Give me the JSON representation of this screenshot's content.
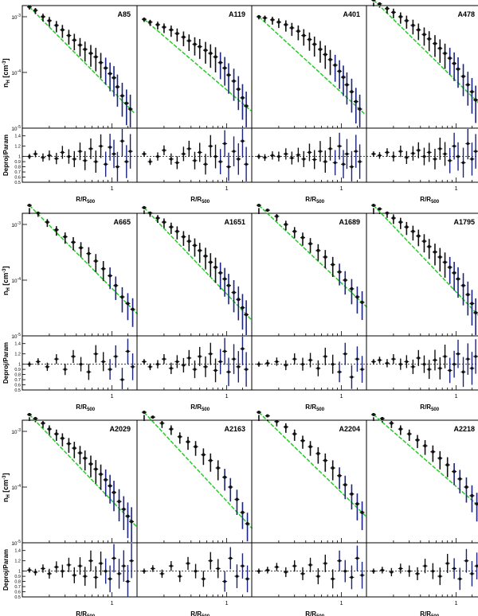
{
  "figure": {
    "ylabel_top": "n_H [cm^-3]",
    "ylabel_bottom": "Deproj/Param",
    "xlabel": "R/R_500"
  },
  "colors": {
    "data": "#111111",
    "error_bar": "#1a237e",
    "model": "#22cc22",
    "frame": "#000000",
    "reference_line": "#000000"
  },
  "chart_data": {
    "type": "scatter",
    "x_scale": "log",
    "y_scale_top": "log",
    "y_top_ticks": [
      "10^-3",
      "10^-4",
      "10^-5"
    ],
    "y_bottom_ticks": [
      "0.5",
      "0.6",
      "0.7",
      "0.8",
      "0.9",
      "1",
      "1.2",
      "1.4"
    ],
    "x_tick_label": "1",
    "reference_ratio": 1.0,
    "panels": [
      {
        "name": "A85",
        "x": [
          0.12,
          0.14,
          0.17,
          0.2,
          0.24,
          0.28,
          0.33,
          0.38,
          0.44,
          0.5,
          0.58,
          0.66,
          0.75,
          0.85,
          0.95,
          1.05,
          1.15,
          1.3,
          1.45,
          1.6
        ],
        "density_e4": [
          15,
          13,
          10,
          8.5,
          7,
          5.8,
          4.6,
          3.8,
          3.1,
          2.6,
          2.2,
          1.9,
          1.5,
          1.2,
          0.95,
          0.8,
          0.55,
          0.38,
          0.28,
          0.22
        ],
        "ratio": [
          1.0,
          1.05,
          0.98,
          1.02,
          0.96,
          1.08,
          1.0,
          0.95,
          1.1,
          0.92,
          1.15,
          0.9,
          1.2,
          0.85,
          1.18,
          1.05,
          0.8,
          1.3,
          0.9,
          1.1
        ]
      },
      {
        "name": "A119",
        "x": [
          0.12,
          0.14,
          0.17,
          0.2,
          0.24,
          0.28,
          0.33,
          0.38,
          0.44,
          0.5,
          0.58,
          0.66,
          0.75,
          0.85,
          0.95,
          1.05,
          1.2,
          1.35,
          1.5,
          1.65
        ],
        "density_e4": [
          9,
          8,
          7.2,
          6.5,
          5.8,
          5,
          4.3,
          3.7,
          3.2,
          2.9,
          2.5,
          2.2,
          1.9,
          1.5,
          1.2,
          0.9,
          0.7,
          0.5,
          0.35,
          0.25
        ],
        "ratio": [
          1.05,
          0.9,
          1.0,
          1.12,
          0.95,
          0.88,
          1.05,
          1.15,
          0.92,
          1.08,
          0.85,
          1.2,
          1.0,
          0.9,
          1.25,
          0.8,
          1.1,
          0.95,
          1.3,
          0.85
        ]
      },
      {
        "name": "A401",
        "x": [
          0.12,
          0.14,
          0.17,
          0.2,
          0.24,
          0.28,
          0.33,
          0.38,
          0.44,
          0.5,
          0.58,
          0.66,
          0.75,
          0.85,
          0.95,
          1.05,
          1.15,
          1.3,
          1.45,
          1.6
        ],
        "density_e4": [
          10,
          9.5,
          8.8,
          8,
          7.2,
          6.3,
          5.5,
          4.6,
          3.9,
          3.2,
          2.6,
          2.1,
          1.7,
          1.35,
          1.05,
          0.82,
          0.6,
          0.45,
          0.3,
          0.22
        ],
        "ratio": [
          1.0,
          0.98,
          1.02,
          1.0,
          1.05,
          0.97,
          1.03,
          0.95,
          1.08,
          0.94,
          1.1,
          0.9,
          1.15,
          0.88,
          1.2,
          0.85,
          1.05,
          0.8,
          1.1,
          0.9
        ]
      },
      {
        "name": "A478",
        "x": [
          0.12,
          0.14,
          0.17,
          0.2,
          0.24,
          0.28,
          0.33,
          0.38,
          0.44,
          0.5,
          0.58,
          0.66,
          0.75,
          0.85,
          0.95,
          1.05,
          1.2,
          1.35,
          1.5,
          1.65
        ],
        "density_e4": [
          20,
          17,
          14,
          12,
          10,
          8.5,
          7,
          5.8,
          4.8,
          4,
          3.3,
          2.7,
          2.2,
          1.8,
          1.45,
          1.15,
          0.85,
          0.6,
          0.45,
          0.32
        ],
        "ratio": [
          1.05,
          1.02,
          1.08,
          1.0,
          1.1,
          0.98,
          1.06,
          1.12,
          1.0,
          1.08,
          0.95,
          1.15,
          1.05,
          0.92,
          1.2,
          1.0,
          0.88,
          1.25,
          0.95,
          1.1
        ]
      },
      {
        "name": "A665",
        "x": [
          0.12,
          0.15,
          0.19,
          0.24,
          0.3,
          0.37,
          0.45,
          0.55,
          0.66,
          0.8,
          0.95,
          1.1,
          1.3,
          1.5,
          1.7
        ],
        "density_e4": [
          22,
          16,
          11,
          8,
          6,
          4.8,
          3.8,
          3,
          2.2,
          1.6,
          1.2,
          0.8,
          0.5,
          0.38,
          0.3
        ],
        "ratio": [
          1.0,
          1.05,
          0.95,
          1.1,
          0.9,
          1.15,
          1.0,
          0.85,
          1.2,
          1.05,
          0.9,
          1.15,
          0.7,
          1.25,
          0.95
        ]
      },
      {
        "name": "A1651",
        "x": [
          0.12,
          0.14,
          0.17,
          0.2,
          0.24,
          0.28,
          0.33,
          0.38,
          0.44,
          0.5,
          0.58,
          0.66,
          0.75,
          0.85,
          0.95,
          1.05,
          1.2,
          1.35,
          1.5,
          1.65
        ],
        "density_e4": [
          20,
          16,
          13,
          11,
          9,
          7.5,
          6,
          5,
          4.2,
          3.4,
          2.7,
          2.1,
          1.7,
          1.35,
          1.05,
          0.8,
          0.6,
          0.45,
          0.32,
          0.24
        ],
        "ratio": [
          1.05,
          0.95,
          1.0,
          1.1,
          0.92,
          1.05,
          0.98,
          1.12,
          0.9,
          1.15,
          0.95,
          1.2,
          0.88,
          1.05,
          1.25,
          0.85,
          1.1,
          0.95,
          1.3,
          0.9
        ]
      },
      {
        "name": "A1689",
        "x": [
          0.12,
          0.15,
          0.19,
          0.24,
          0.3,
          0.37,
          0.45,
          0.55,
          0.66,
          0.8,
          0.95,
          1.1,
          1.3,
          1.5,
          1.7
        ],
        "density_e4": [
          22,
          18,
          14,
          10,
          7.5,
          5.8,
          4.5,
          3.4,
          2.6,
          1.9,
          1.4,
          1.0,
          0.7,
          0.5,
          0.4
        ],
        "ratio": [
          1.0,
          1.02,
          1.05,
          0.98,
          1.1,
          1.0,
          1.08,
          0.92,
          1.15,
          1.0,
          0.85,
          1.2,
          0.75,
          1.1,
          0.9
        ]
      },
      {
        "name": "A1795",
        "x": [
          0.12,
          0.14,
          0.17,
          0.2,
          0.24,
          0.28,
          0.33,
          0.38,
          0.44,
          0.5,
          0.58,
          0.66,
          0.75,
          0.85,
          0.95,
          1.05,
          1.2,
          1.35,
          1.5,
          1.65
        ],
        "density_e4": [
          22,
          19,
          16,
          13,
          11,
          9,
          7.5,
          6.2,
          5,
          4,
          3.2,
          2.6,
          2.1,
          1.7,
          1.35,
          1.05,
          0.8,
          0.55,
          0.38,
          0.26
        ],
        "ratio": [
          1.05,
          1.08,
          1.02,
          1.1,
          1.0,
          1.05,
          0.95,
          1.12,
          1.0,
          0.9,
          1.08,
          0.92,
          1.15,
          0.88,
          1.0,
          1.2,
          0.85,
          1.1,
          0.92,
          1.15
        ]
      },
      {
        "name": "A2029",
        "x": [
          0.12,
          0.14,
          0.17,
          0.2,
          0.24,
          0.28,
          0.33,
          0.38,
          0.44,
          0.5,
          0.58,
          0.66,
          0.75,
          0.85,
          0.95,
          1.05,
          1.2,
          1.35,
          1.5,
          1.65
        ],
        "density_e4": [
          20,
          17,
          14,
          11,
          9,
          7.5,
          6,
          5,
          4.1,
          3.3,
          2.6,
          2.1,
          1.7,
          1.35,
          1.05,
          0.8,
          0.55,
          0.4,
          0.3,
          0.24
        ],
        "ratio": [
          1.02,
          0.98,
          1.05,
          0.95,
          1.08,
          1.0,
          1.12,
          0.92,
          1.1,
          0.9,
          1.2,
          0.88,
          1.15,
          1.0,
          0.85,
          1.25,
          0.95,
          1.1,
          0.8,
          1.2
        ]
      },
      {
        "name": "A2163",
        "x": [
          0.12,
          0.15,
          0.19,
          0.24,
          0.3,
          0.37,
          0.45,
          0.55,
          0.66,
          0.8,
          0.95,
          1.1,
          1.3,
          1.5,
          1.7
        ],
        "density_e4": [
          22,
          18,
          14,
          11,
          8,
          6.5,
          5.3,
          3.8,
          3,
          2.2,
          1.5,
          1.0,
          0.6,
          0.35,
          0.22
        ],
        "ratio": [
          1.0,
          1.05,
          0.95,
          1.1,
          0.9,
          1.15,
          1.0,
          0.85,
          1.2,
          1.05,
          0.8,
          1.25,
          0.9,
          1.1,
          0.85
        ]
      },
      {
        "name": "A2204",
        "x": [
          0.12,
          0.15,
          0.19,
          0.24,
          0.3,
          0.37,
          0.45,
          0.55,
          0.66,
          0.8,
          0.95,
          1.1,
          1.3,
          1.5,
          1.7
        ],
        "density_e4": [
          22,
          19,
          15,
          12,
          9,
          6.8,
          5.3,
          4,
          3,
          2.2,
          1.6,
          1.1,
          0.75,
          0.5,
          0.35
        ],
        "ratio": [
          1.0,
          1.02,
          1.08,
          0.98,
          1.1,
          0.95,
          1.12,
          0.9,
          1.15,
          0.85,
          1.2,
          1.0,
          0.88,
          1.25,
          0.92
        ]
      },
      {
        "name": "A2218",
        "x": [
          0.12,
          0.15,
          0.19,
          0.24,
          0.3,
          0.37,
          0.45,
          0.55,
          0.66,
          0.8,
          0.95,
          1.1,
          1.3,
          1.5,
          1.7
        ],
        "density_e4": [
          20,
          17,
          14,
          11,
          9,
          7,
          5.5,
          4.3,
          3.3,
          2.5,
          1.9,
          1.4,
          1.0,
          0.7,
          0.5
        ],
        "ratio": [
          1.0,
          1.02,
          0.98,
          1.05,
          1.0,
          0.95,
          1.1,
          1.0,
          0.9,
          1.15,
          1.05,
          0.85,
          1.2,
          0.95,
          1.1
        ]
      }
    ]
  }
}
